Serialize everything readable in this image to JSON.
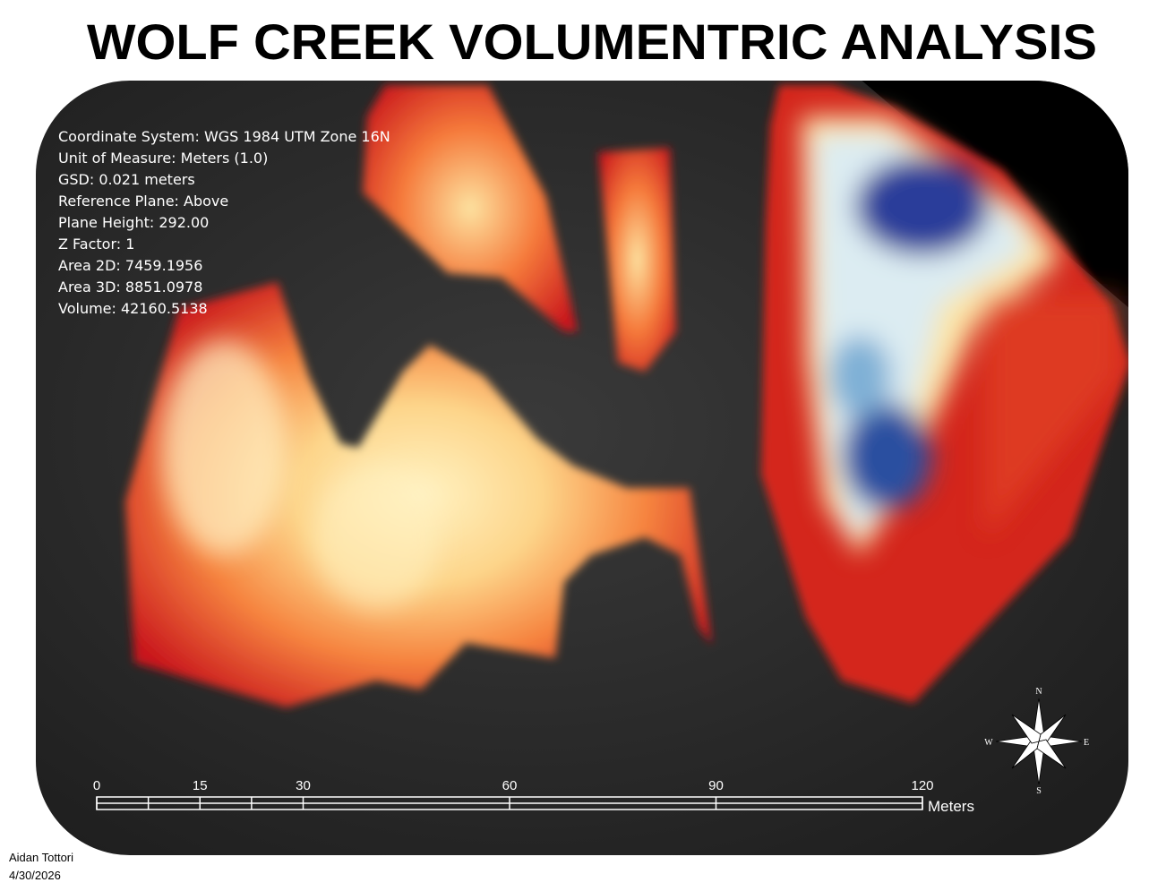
{
  "title": "WOLF CREEK VOLUMENTRIC ANALYSIS",
  "info": [
    "Coordinate System: WGS 1984 UTM Zone 16N",
    "Unit of Measure: Meters (1.0)",
    "GSD: 0.021 meters",
    "Reference Plane: Above",
    "Plane Height: 292.00",
    "Z Factor: 1",
    "Area 2D: 7459.1956",
    "Area 3D: 8851.0978",
    "Volume: 42160.5138"
  ],
  "scale_bar": {
    "ticks": [
      0,
      15,
      30,
      60,
      90,
      120
    ],
    "unit": "Meters"
  },
  "compass": {
    "north": "N",
    "south": "S",
    "east": "E",
    "west": "W"
  },
  "author": "Aidan Tottori",
  "date": "4/30/2026"
}
